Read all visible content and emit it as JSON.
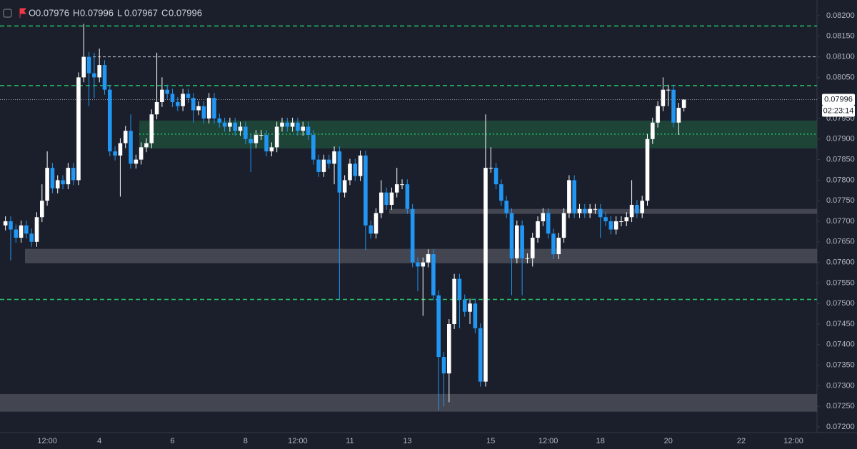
{
  "chart_data": {
    "type": "candlestick",
    "header": [
      {
        "key": "O",
        "value": 0.07976
      },
      {
        "key": "H",
        "value": 0.07996
      },
      {
        "key": "L",
        "value": 0.07967
      },
      {
        "key": "C",
        "value": 0.07996
      }
    ],
    "up_color": "#ffffff",
    "down_color": "#2196f3",
    "categories": [
      null,
      null,
      null,
      null,
      null,
      null,
      null,
      null,
      "12:00",
      null,
      null,
      null,
      null,
      null,
      null,
      null,
      null,
      null,
      "4",
      null,
      null,
      null,
      null,
      null,
      null,
      null,
      null,
      null,
      null,
      null,
      null,
      null,
      "6",
      null,
      null,
      null,
      null,
      null,
      null,
      null,
      null,
      null,
      null,
      null,
      null,
      null,
      "8",
      null,
      null,
      null,
      null,
      null,
      null,
      null,
      null,
      null,
      "12:00",
      null,
      null,
      null,
      null,
      null,
      null,
      null,
      null,
      null,
      "11",
      null,
      null,
      null,
      null,
      null,
      null,
      null,
      null,
      null,
      null,
      "13",
      null,
      null,
      null,
      null,
      null,
      null,
      null,
      null,
      null,
      null,
      null,
      null,
      null,
      null,
      null,
      "15",
      null,
      null,
      null,
      null,
      null,
      null,
      null,
      null,
      null,
      null,
      "12:00",
      null,
      null,
      null,
      null,
      null,
      null,
      null,
      null,
      null,
      "18",
      null,
      null,
      null,
      null,
      null,
      null,
      null,
      null,
      null,
      null,
      null,
      null,
      "20",
      null,
      null,
      null,
      null,
      null,
      null,
      null,
      null,
      null,
      null,
      null,
      null,
      null,
      "22",
      null,
      null,
      null,
      null,
      null,
      null,
      null,
      null,
      null,
      "12:00",
      null,
      null,
      null,
      null
    ],
    "open": [
      0.0769,
      0.077,
      0.0768,
      0.0766,
      0.0769,
      0.0767,
      0.0765,
      0.0771,
      0.0775,
      0.0783,
      0.0778,
      0.078,
      0.0779,
      0.0783,
      0.078,
      0.0805,
      0.081,
      0.0806,
      0.0805,
      0.0808,
      0.0802,
      0.0787,
      0.0786,
      0.0789,
      0.0792,
      0.0784,
      0.0785,
      0.0788,
      0.0789,
      0.0796,
      0.0799,
      0.0802,
      0.0801,
      0.0799,
      0.0798,
      0.0801,
      0.08,
      0.0797,
      0.0798,
      0.0795,
      0.08,
      0.0795,
      0.0794,
      0.0793,
      0.0794,
      0.0792,
      0.0793,
      0.079,
      0.0789,
      0.0791,
      0.0791,
      0.0787,
      0.0788,
      0.0793,
      0.0794,
      0.0793,
      0.0794,
      0.0792,
      0.0793,
      0.0791,
      0.0785,
      0.0782,
      0.0785,
      0.0784,
      0.0787,
      0.0777,
      0.078,
      0.0784,
      0.0781,
      0.0786,
      0.0769,
      0.0767,
      0.0772,
      0.0777,
      0.0774,
      0.0777,
      0.0779,
      0.0779,
      0.0773,
      0.076,
      0.0759,
      0.076,
      0.0762,
      0.0752,
      0.0737,
      0.0733,
      0.0745,
      0.0756,
      0.0751,
      0.0748,
      0.075,
      0.0744,
      0.0731,
      0.0783,
      0.0783,
      0.0779,
      0.0775,
      0.0772,
      0.0761,
      0.0769,
      0.0761,
      0.0761,
      0.0766,
      0.077,
      0.0772,
      0.0767,
      0.0762,
      0.0766,
      0.0772,
      0.078,
      0.0772,
      0.0773,
      0.0772,
      0.0773,
      0.0773,
      0.0771,
      0.077,
      0.0768,
      0.077,
      0.077,
      0.0771,
      0.0774,
      0.0772,
      0.0775,
      0.079,
      0.0794,
      0.0798,
      0.0802,
      0.0802,
      0.0794,
      0.07976,
      null,
      null,
      null,
      null,
      null,
      null,
      null,
      null,
      null,
      null,
      null,
      null,
      null,
      null,
      null,
      null,
      null,
      null,
      null,
      null,
      null,
      null,
      null,
      null,
      null
    ],
    "high": [
      0.07712,
      0.07712,
      0.07692,
      0.07702,
      0.07702,
      0.07682,
      0.07722,
      0.0779,
      0.0787,
      0.07842,
      0.07812,
      0.07812,
      0.07842,
      0.07842,
      0.08062,
      0.0818,
      0.08112,
      0.0811,
      0.0812,
      0.08092,
      0.08032,
      0.07882,
      0.07902,
      0.07932,
      0.0796,
      0.07862,
      0.07892,
      0.07902,
      0.07972,
      0.0811,
      0.0805,
      0.08032,
      0.08022,
      0.08002,
      0.08022,
      0.08022,
      0.08012,
      0.07992,
      0.07992,
      0.08012,
      0.08012,
      0.07962,
      0.07952,
      0.07952,
      0.07952,
      0.07942,
      0.07942,
      0.07912,
      0.07922,
      0.07922,
      0.07922,
      0.07892,
      0.07942,
      0.07952,
      0.07952,
      0.07952,
      0.07952,
      0.07942,
      0.07942,
      0.07922,
      0.07862,
      0.07862,
      0.07862,
      0.07882,
      0.07882,
      0.07812,
      0.07852,
      0.07852,
      0.07872,
      0.07872,
      0.07702,
      0.07732,
      0.078,
      0.07782,
      0.07782,
      0.0783,
      0.07802,
      0.07802,
      0.07742,
      0.07612,
      0.07612,
      0.07632,
      0.07632,
      0.07532,
      0.07382,
      0.07462,
      0.07572,
      0.07572,
      0.07522,
      0.07512,
      0.07512,
      0.07452,
      0.0796,
      0.0788,
      0.07842,
      0.07802,
      0.07762,
      0.07732,
      0.07702,
      0.07702,
      0.07622,
      0.07672,
      0.07712,
      0.07732,
      0.07732,
      0.07682,
      0.07672,
      0.07732,
      0.07812,
      0.07812,
      0.07742,
      0.07742,
      0.07742,
      0.07742,
      0.07742,
      0.07722,
      0.07712,
      0.07712,
      0.07712,
      0.07722,
      0.078,
      0.07752,
      0.07762,
      0.07912,
      0.07952,
      0.07992,
      0.0805,
      0.08032,
      0.08032,
      0.07988,
      0.07996,
      null,
      null,
      null,
      null,
      null,
      null,
      null,
      null,
      null,
      null,
      null,
      null,
      null,
      null,
      null,
      null,
      null,
      null,
      null,
      null,
      null,
      null,
      null,
      null,
      null
    ],
    "low": [
      0.07678,
      0.07605,
      0.07648,
      0.07648,
      0.07658,
      0.07638,
      0.07638,
      0.07698,
      0.07738,
      0.07768,
      0.07768,
      0.07778,
      0.07778,
      0.07788,
      0.07788,
      0.08038,
      0.0798,
      0.08,
      0.08038,
      0.08008,
      0.07858,
      0.07848,
      0.0776,
      0.07878,
      0.07828,
      0.07828,
      0.07838,
      0.07868,
      0.07878,
      0.07948,
      0.07978,
      0.07998,
      0.07978,
      0.07968,
      0.07968,
      0.07988,
      0.0794,
      0.07958,
      0.07938,
      0.07938,
      0.07938,
      0.07928,
      0.07918,
      0.07918,
      0.07908,
      0.07908,
      0.07888,
      0.0782,
      0.07878,
      0.07898,
      0.07858,
      0.07858,
      0.07868,
      0.07918,
      0.07918,
      0.07918,
      0.07908,
      0.07908,
      0.07898,
      0.07838,
      0.07808,
      0.07808,
      0.07828,
      0.0779,
      0.0751,
      0.07758,
      0.07788,
      0.07798,
      0.07798,
      0.0763,
      0.07658,
      0.07658,
      0.07708,
      0.07728,
      0.07728,
      0.07758,
      0.07778,
      0.07718,
      0.07588,
      0.0753,
      0.0747,
      0.07588,
      0.07508,
      0.0724,
      0.0725,
      0.0726,
      0.07438,
      0.0744,
      0.07468,
      0.0745,
      0.07428,
      0.07298,
      0.07298,
      0.07818,
      0.07778,
      0.07738,
      0.07708,
      0.0752,
      0.07598,
      0.0752,
      0.07598,
      0.0759,
      0.07648,
      0.07688,
      0.07658,
      0.07608,
      0.07608,
      0.07648,
      0.07708,
      0.07708,
      0.07708,
      0.07708,
      0.07708,
      0.07718,
      0.0766,
      0.07688,
      0.07668,
      0.07668,
      0.07688,
      0.07688,
      0.07698,
      0.07708,
      0.07708,
      0.07738,
      0.07888,
      0.07928,
      0.07968,
      0.0798,
      0.07928,
      0.0791,
      0.07967,
      null,
      null,
      null,
      null,
      null,
      null,
      null,
      null,
      null,
      null,
      null,
      null,
      null,
      null,
      null,
      null,
      null,
      null,
      null,
      null,
      null,
      null,
      null,
      null,
      null
    ],
    "close": [
      0.077,
      0.0768,
      0.0766,
      0.0769,
      0.0767,
      0.0765,
      0.0771,
      0.0775,
      0.0783,
      0.0778,
      0.078,
      0.0779,
      0.0783,
      0.078,
      0.0805,
      0.081,
      0.0806,
      0.0805,
      0.0808,
      0.0802,
      0.0787,
      0.0786,
      0.0789,
      0.0792,
      0.0784,
      0.0785,
      0.0788,
      0.0789,
      0.0796,
      0.0799,
      0.0802,
      0.0801,
      0.0799,
      0.0798,
      0.0801,
      0.08,
      0.0797,
      0.0798,
      0.0795,
      0.08,
      0.0795,
      0.0794,
      0.0793,
      0.0794,
      0.0792,
      0.0793,
      0.079,
      0.0789,
      0.0791,
      0.0791,
      0.0787,
      0.0788,
      0.0793,
      0.0794,
      0.0793,
      0.0794,
      0.0792,
      0.0793,
      0.0791,
      0.0785,
      0.0782,
      0.0785,
      0.0784,
      0.0787,
      0.0777,
      0.078,
      0.0784,
      0.0781,
      0.0786,
      0.0769,
      0.0767,
      0.0772,
      0.0777,
      0.0774,
      0.0777,
      0.0779,
      0.0779,
      0.0773,
      0.076,
      0.0759,
      0.076,
      0.0762,
      0.0752,
      0.0737,
      0.0733,
      0.0745,
      0.0756,
      0.0751,
      0.0748,
      0.075,
      0.0744,
      0.0731,
      0.0783,
      0.0783,
      0.0779,
      0.0775,
      0.0772,
      0.0761,
      0.0769,
      0.0761,
      0.0761,
      0.0766,
      0.077,
      0.0772,
      0.0767,
      0.0762,
      0.0766,
      0.0772,
      0.078,
      0.0772,
      0.0773,
      0.0772,
      0.0773,
      0.0773,
      0.0771,
      0.077,
      0.0768,
      0.077,
      0.077,
      0.0771,
      0.0774,
      0.0772,
      0.0775,
      0.079,
      0.0794,
      0.0798,
      0.0802,
      0.0802,
      0.0794,
      0.07976,
      0.07996,
      null,
      null,
      null,
      null,
      null,
      null,
      null,
      null,
      null,
      null,
      null,
      null,
      null,
      null,
      null,
      null,
      null,
      null,
      null,
      null,
      null,
      null,
      null,
      null,
      null
    ],
    "ylim": [
      0.072,
      0.0822
    ],
    "yticks": [
      {
        "value": 0.082,
        "label": "0.08200"
      },
      {
        "value": 0.0815,
        "label": "0.08150"
      },
      {
        "value": 0.081,
        "label": "0.08100"
      },
      {
        "value": 0.0805,
        "label": "0.08050"
      },
      {
        "value": 0.08,
        "label": "0.08000"
      },
      {
        "value": 0.0795,
        "label": "0.07950"
      },
      {
        "value": 0.079,
        "label": "0.07900"
      },
      {
        "value": 0.0785,
        "label": "0.07850"
      },
      {
        "value": 0.078,
        "label": "0.07800"
      },
      {
        "value": 0.0775,
        "label": "0.07750"
      },
      {
        "value": 0.077,
        "label": "0.07700"
      },
      {
        "value": 0.0765,
        "label": "0.07650"
      },
      {
        "value": 0.076,
        "label": "0.07600"
      },
      {
        "value": 0.0755,
        "label": "0.07550"
      },
      {
        "value": 0.075,
        "label": "0.07500"
      },
      {
        "value": 0.0745,
        "label": "0.07450"
      },
      {
        "value": 0.074,
        "label": "0.07400"
      },
      {
        "value": 0.0735,
        "label": "0.07350"
      },
      {
        "value": 0.073,
        "label": "0.07300"
      },
      {
        "value": 0.0725,
        "label": "0.07250"
      },
      {
        "value": 0.072,
        "label": "0.07200"
      }
    ],
    "levels": [
      {
        "value": 0.08175,
        "color": "#26c165"
      },
      {
        "value": 0.081,
        "color": "#d1d4dc"
      },
      {
        "value": 0.0803,
        "color": "#26c165"
      },
      {
        "value": 0.0751,
        "color": "#26c165"
      }
    ],
    "zones": [
      {
        "top": 0.07945,
        "bottom": 0.07877,
        "color": "#1e4a3a",
        "mid": 0.07912
      },
      {
        "top": 0.07633,
        "bottom": 0.07598,
        "color": "#4a4d57"
      },
      {
        "top": 0.0773,
        "bottom": 0.07718,
        "color": "#4a4d57"
      },
      {
        "top": 0.0728,
        "bottom": 0.07237,
        "color": "#4a4d57"
      }
    ],
    "last_price": 0.07996,
    "countdown": "02:23:14"
  }
}
